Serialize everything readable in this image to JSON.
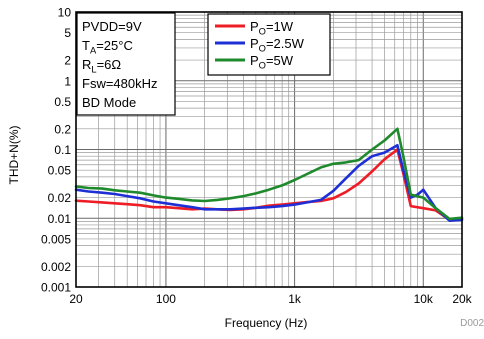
{
  "chart_data": {
    "type": "line",
    "xlabel": "Frequency (Hz)",
    "ylabel": "THD+N(%)",
    "x_scale": "log",
    "y_scale": "log",
    "xlim": [
      20,
      20000
    ],
    "ylim": [
      0.001,
      10
    ],
    "grid": true,
    "x_ticks": [
      {
        "v": 20,
        "label": "20"
      },
      {
        "v": 100,
        "label": "100"
      },
      {
        "v": 1000,
        "label": "1k"
      },
      {
        "v": 10000,
        "label": "10k"
      },
      {
        "v": 20000,
        "label": "20k"
      }
    ],
    "y_ticks": [
      {
        "v": 10,
        "label": "10"
      },
      {
        "v": 5,
        "label": "5"
      },
      {
        "v": 2,
        "label": "2"
      },
      {
        "v": 1,
        "label": "1"
      },
      {
        "v": 0.5,
        "label": "0.5"
      },
      {
        "v": 0.2,
        "label": "0.2"
      },
      {
        "v": 0.1,
        "label": "0.1"
      },
      {
        "v": 0.05,
        "label": "0.05"
      },
      {
        "v": 0.02,
        "label": "0.02"
      },
      {
        "v": 0.01,
        "label": "0.01"
      },
      {
        "v": 0.005,
        "label": "0.005"
      },
      {
        "v": 0.002,
        "label": "0.002"
      },
      {
        "v": 0.001,
        "label": "0.001"
      }
    ],
    "conditions": [
      "PVDD=9V",
      "T_A=25°C",
      "R_L=6Ω",
      "Fsw=480kHz",
      "BD Mode"
    ],
    "legend_position": "top-center",
    "series": [
      {
        "name": "P_O=1W",
        "color": "#ee1c24",
        "points": [
          [
            20,
            0.018
          ],
          [
            25,
            0.0175
          ],
          [
            32,
            0.017
          ],
          [
            40,
            0.0165
          ],
          [
            50,
            0.016
          ],
          [
            63,
            0.0155
          ],
          [
            80,
            0.0145
          ],
          [
            100,
            0.0145
          ],
          [
            125,
            0.014
          ],
          [
            160,
            0.0135
          ],
          [
            200,
            0.0138
          ],
          [
            250,
            0.0135
          ],
          [
            315,
            0.0132
          ],
          [
            400,
            0.0135
          ],
          [
            500,
            0.0142
          ],
          [
            630,
            0.0152
          ],
          [
            800,
            0.0158
          ],
          [
            1000,
            0.0165
          ],
          [
            1250,
            0.0172
          ],
          [
            1600,
            0.0178
          ],
          [
            2000,
            0.0195
          ],
          [
            2500,
            0.024
          ],
          [
            3150,
            0.032
          ],
          [
            4000,
            0.048
          ],
          [
            5000,
            0.072
          ],
          [
            6300,
            0.1
          ],
          [
            7000,
            0.045
          ],
          [
            8000,
            0.015
          ],
          [
            10000,
            0.014
          ],
          [
            12500,
            0.013
          ],
          [
            16000,
            0.0095
          ],
          [
            20000,
            0.0098
          ]
        ]
      },
      {
        "name": "P_O=2.5W",
        "color": "#1f2fd6",
        "points": [
          [
            20,
            0.026
          ],
          [
            25,
            0.0245
          ],
          [
            32,
            0.0235
          ],
          [
            40,
            0.0225
          ],
          [
            50,
            0.021
          ],
          [
            63,
            0.0195
          ],
          [
            80,
            0.0175
          ],
          [
            100,
            0.0165
          ],
          [
            125,
            0.0155
          ],
          [
            160,
            0.0145
          ],
          [
            200,
            0.0135
          ],
          [
            250,
            0.0135
          ],
          [
            315,
            0.0135
          ],
          [
            400,
            0.0138
          ],
          [
            500,
            0.0142
          ],
          [
            630,
            0.0145
          ],
          [
            800,
            0.015
          ],
          [
            1000,
            0.0158
          ],
          [
            1250,
            0.017
          ],
          [
            1600,
            0.0185
          ],
          [
            2000,
            0.025
          ],
          [
            2500,
            0.038
          ],
          [
            3150,
            0.058
          ],
          [
            4000,
            0.08
          ],
          [
            5000,
            0.09
          ],
          [
            6300,
            0.115
          ],
          [
            7000,
            0.05
          ],
          [
            8000,
            0.02
          ],
          [
            9000,
            0.022
          ],
          [
            10000,
            0.026
          ],
          [
            12500,
            0.014
          ],
          [
            16000,
            0.0092
          ],
          [
            20000,
            0.0095
          ]
        ]
      },
      {
        "name": "P_O=5W",
        "color": "#1f8a2c",
        "points": [
          [
            20,
            0.029
          ],
          [
            25,
            0.0275
          ],
          [
            32,
            0.027
          ],
          [
            40,
            0.0255
          ],
          [
            50,
            0.0245
          ],
          [
            63,
            0.0235
          ],
          [
            80,
            0.0215
          ],
          [
            100,
            0.02
          ],
          [
            125,
            0.0192
          ],
          [
            160,
            0.0182
          ],
          [
            200,
            0.0178
          ],
          [
            250,
            0.0185
          ],
          [
            315,
            0.0195
          ],
          [
            400,
            0.021
          ],
          [
            500,
            0.023
          ],
          [
            630,
            0.026
          ],
          [
            800,
            0.03
          ],
          [
            1000,
            0.036
          ],
          [
            1250,
            0.044
          ],
          [
            1600,
            0.055
          ],
          [
            2000,
            0.062
          ],
          [
            2500,
            0.065
          ],
          [
            3150,
            0.07
          ],
          [
            4000,
            0.1
          ],
          [
            5000,
            0.135
          ],
          [
            6300,
            0.2
          ],
          [
            7000,
            0.08
          ],
          [
            8000,
            0.022
          ],
          [
            10000,
            0.02
          ],
          [
            12500,
            0.014
          ],
          [
            16000,
            0.0098
          ],
          [
            20000,
            0.0102
          ]
        ]
      }
    ]
  },
  "figure_id": "D002"
}
